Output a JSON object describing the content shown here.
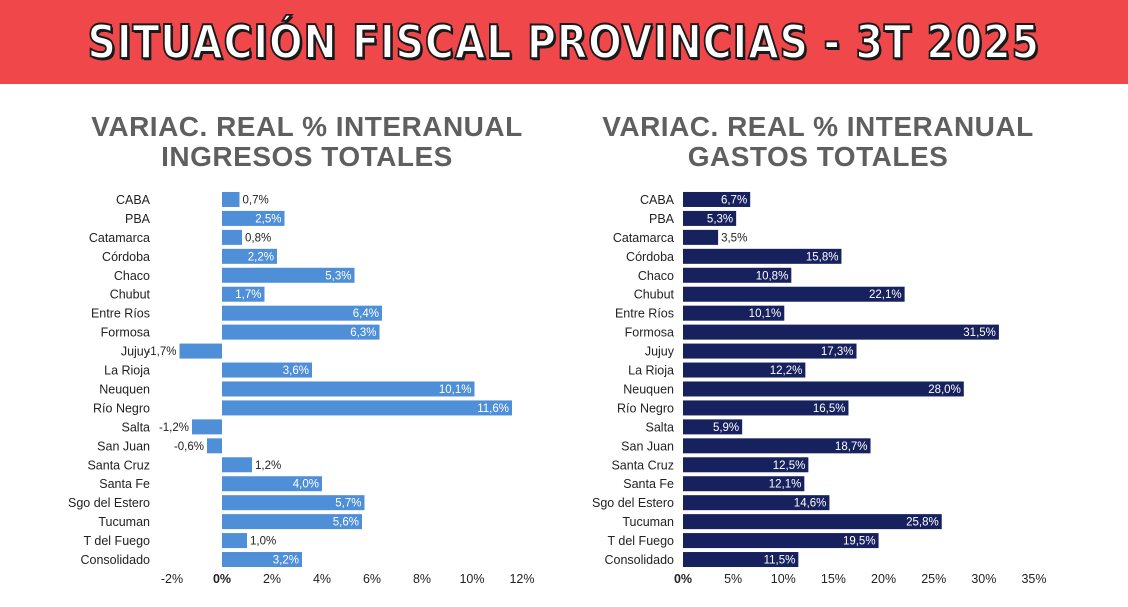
{
  "header": {
    "title": "SITUACIÓN FISCAL PROVINCIAS - 3T 2025"
  },
  "chart_data": [
    {
      "type": "bar",
      "orientation": "horizontal",
      "title_lines": [
        "VARIAC. REAL % INTERANUAL",
        "INGRESOS TOTALES"
      ],
      "categories": [
        "CABA",
        "PBA",
        "Catamarca",
        "Córdoba",
        "Chaco",
        "Chubut",
        "Entre Ríos",
        "Formosa",
        "Jujuy",
        "La Rioja",
        "Neuquen",
        "Río Negro",
        "Salta",
        "San Juan",
        "Santa Cruz",
        "Santa Fe",
        "Sgo del Estero",
        "Tucuman",
        "T del Fuego",
        "Consolidado"
      ],
      "values": [
        0.7,
        2.5,
        0.8,
        2.2,
        5.3,
        1.7,
        6.4,
        6.3,
        -1.7,
        3.6,
        10.1,
        11.6,
        -1.2,
        -0.6,
        1.2,
        4.0,
        5.7,
        5.6,
        1.0,
        3.2
      ],
      "value_labels": [
        "0,7%",
        "2,5%",
        "0,8%",
        "2,2%",
        "5,3%",
        "1,7%",
        "6,4%",
        "6,3%",
        "-1,7%",
        "3,6%",
        "10,1%",
        "11,6%",
        "-1,2%",
        "-0,6%",
        "1,2%",
        "4,0%",
        "5,7%",
        "5,6%",
        "1,0%",
        "3,2%"
      ],
      "xlim": [
        -2,
        12
      ],
      "xticks": [
        -2,
        0,
        2,
        4,
        6,
        8,
        10,
        12
      ],
      "xtick_labels": [
        "-2%",
        "0%",
        "2%",
        "4%",
        "6%",
        "8%",
        "10%",
        "12%"
      ],
      "bar_color": "#4f8fd8",
      "label_color_inside": "#ffffff",
      "label_color_outside": "#222222"
    },
    {
      "type": "bar",
      "orientation": "horizontal",
      "title_lines": [
        "VARIAC. REAL % INTERANUAL",
        "GASTOS TOTALES"
      ],
      "categories": [
        "CABA",
        "PBA",
        "Catamarca",
        "Córdoba",
        "Chaco",
        "Chubut",
        "Entre Ríos",
        "Formosa",
        "Jujuy",
        "La Rioja",
        "Neuquen",
        "Río Negro",
        "Salta",
        "San Juan",
        "Santa Cruz",
        "Santa Fe",
        "Sgo del Estero",
        "Tucuman",
        "T del Fuego",
        "Consolidado"
      ],
      "values": [
        6.7,
        5.3,
        3.5,
        15.8,
        10.8,
        22.1,
        10.1,
        31.5,
        17.3,
        12.2,
        28.0,
        16.5,
        5.9,
        18.7,
        12.5,
        12.1,
        14.6,
        25.8,
        19.5,
        11.5
      ],
      "value_labels": [
        "6,7%",
        "5,3%",
        "3,5%",
        "15,8%",
        "10,8%",
        "22,1%",
        "10,1%",
        "31,5%",
        "17,3%",
        "12,2%",
        "28,0%",
        "16,5%",
        "5,9%",
        "18,7%",
        "12,5%",
        "12,1%",
        "14,6%",
        "25,8%",
        "19,5%",
        "11,5%"
      ],
      "xlim": [
        0,
        35
      ],
      "xticks": [
        0,
        5,
        10,
        15,
        20,
        25,
        30,
        35
      ],
      "xtick_labels": [
        "0%",
        "5%",
        "10%",
        "15%",
        "20%",
        "25%",
        "30%",
        "35%"
      ],
      "bar_color": "#16215e",
      "label_color_inside": "#ffffff",
      "label_color_outside": "#222222"
    }
  ]
}
